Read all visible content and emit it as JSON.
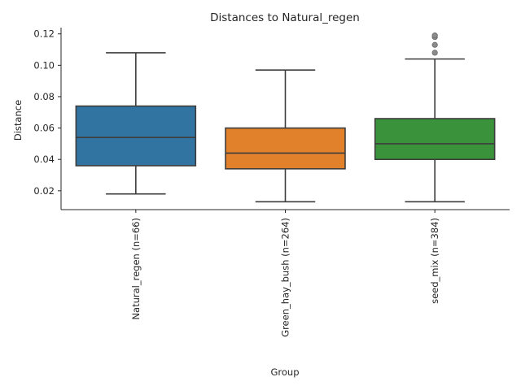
{
  "chart_data": {
    "type": "box",
    "title": "Distances to Natural_regen",
    "xlabel": "Group",
    "ylabel": "Distance",
    "ylim": [
      0.008,
      0.124
    ],
    "yticks": [
      "0.02",
      "0.04",
      "0.06",
      "0.08",
      "0.10",
      "0.12"
    ],
    "yticks_values": [
      0.02,
      0.04,
      0.06,
      0.08,
      0.1,
      0.12
    ],
    "categories": [
      "Natural_regen (n=66)",
      "Green_hay_bush (n=264)",
      "seed_mix (n=384)"
    ],
    "boxes": [
      {
        "whisker_low": 0.018,
        "q1": 0.036,
        "median": 0.054,
        "q3": 0.074,
        "whisker_high": 0.108,
        "outliers": [],
        "color": "#3274a1"
      },
      {
        "whisker_low": 0.013,
        "q1": 0.034,
        "median": 0.044,
        "q3": 0.06,
        "whisker_high": 0.097,
        "outliers": [],
        "color": "#e1812c"
      },
      {
        "whisker_low": 0.013,
        "q1": 0.04,
        "median": 0.05,
        "q3": 0.066,
        "whisker_high": 0.104,
        "outliers": [
          0.108,
          0.113,
          0.118,
          0.119
        ],
        "color": "#3a923a"
      }
    ],
    "grid": false
  }
}
